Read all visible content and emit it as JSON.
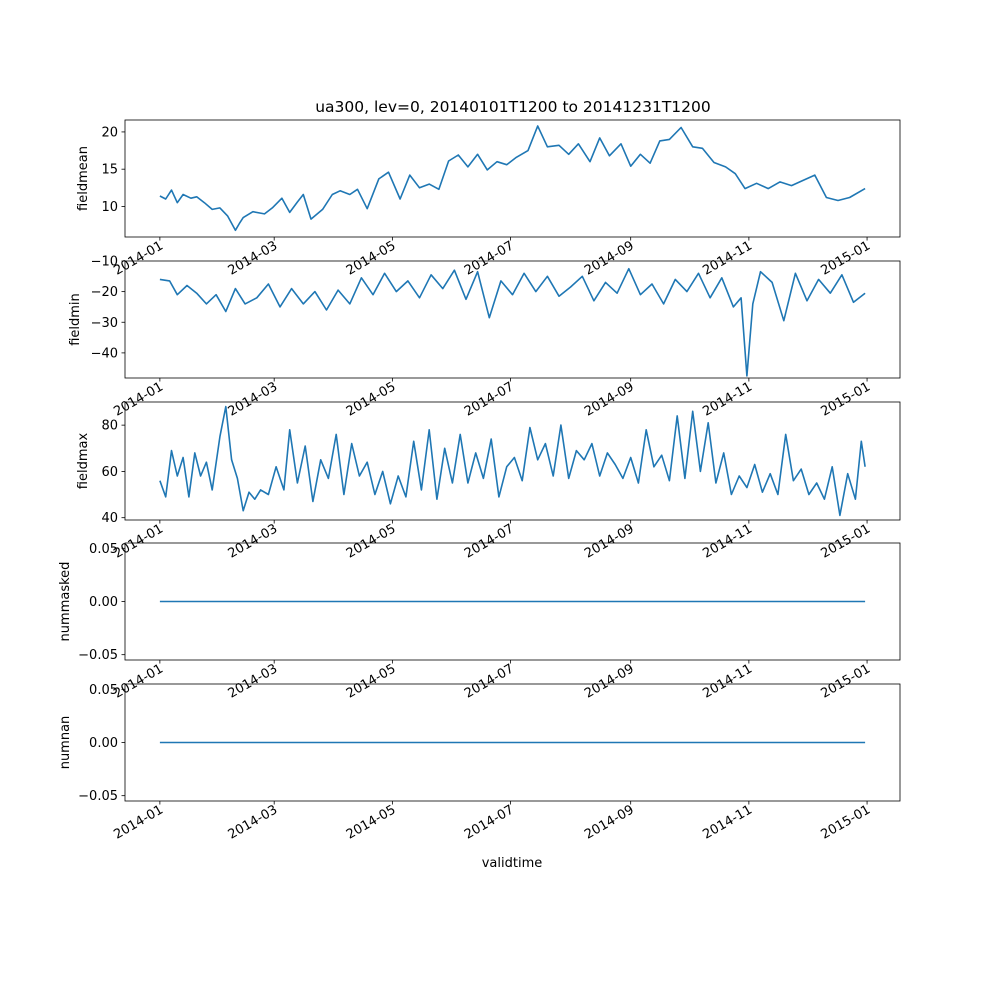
{
  "figure": {
    "title": "ua300, lev=0, 20140101T1200 to 20141231T1200",
    "xlabel": "validtime",
    "line_color": "#1f77b4"
  },
  "chart_data": [
    {
      "type": "line",
      "ylabel": "fieldmean",
      "xlim": [
        "2013-12-14",
        "2015-01-18"
      ],
      "ylim": [
        5.9,
        21.6
      ],
      "yticks": [
        10,
        15,
        20
      ],
      "ytick_labels": [
        "10",
        "15",
        "20"
      ],
      "xticks": [
        "2014-01-01",
        "2014-03-01",
        "2014-05-01",
        "2014-07-01",
        "2014-09-01",
        "2014-11-01",
        "2015-01-01"
      ],
      "xtick_labels": [
        "2014-01",
        "2014-03",
        "2014-05",
        "2014-07",
        "2014-09",
        "2014-11",
        "2015-01"
      ],
      "series": [
        {
          "x": [
            "2014-01-01",
            "2014-01-04",
            "2014-01-07",
            "2014-01-10",
            "2014-01-13",
            "2014-01-17",
            "2014-01-20",
            "2014-01-24",
            "2014-01-28",
            "2014-02-01",
            "2014-02-05",
            "2014-02-09",
            "2014-02-11",
            "2014-02-13",
            "2014-02-18",
            "2014-02-24",
            "2014-02-28",
            "2014-03-05",
            "2014-03-09",
            "2014-03-13",
            "2014-03-16",
            "2014-03-20",
            "2014-03-26",
            "2014-03-31",
            "2014-04-04",
            "2014-04-09",
            "2014-04-13",
            "2014-04-18",
            "2014-04-24",
            "2014-04-29",
            "2014-05-05",
            "2014-05-10",
            "2014-05-15",
            "2014-05-20",
            "2014-05-25",
            "2014-05-30",
            "2014-06-04",
            "2014-06-09",
            "2014-06-14",
            "2014-06-19",
            "2014-06-24",
            "2014-06-29",
            "2014-07-04",
            "2014-07-10",
            "2014-07-15",
            "2014-07-20",
            "2014-07-26",
            "2014-07-31",
            "2014-08-05",
            "2014-08-11",
            "2014-08-16",
            "2014-08-21",
            "2014-08-27",
            "2014-09-01",
            "2014-09-06",
            "2014-09-11",
            "2014-09-16",
            "2014-09-21",
            "2014-09-27",
            "2014-10-03",
            "2014-10-08",
            "2014-10-14",
            "2014-10-20",
            "2014-10-25",
            "2014-10-30",
            "2014-11-05",
            "2014-11-11",
            "2014-11-17",
            "2014-11-23",
            "2014-11-29",
            "2014-12-05",
            "2014-12-11",
            "2014-12-17",
            "2014-12-23",
            "2014-12-31"
          ],
          "y": [
            11.4,
            11.0,
            12.2,
            10.5,
            11.6,
            11.1,
            11.3,
            10.5,
            9.6,
            9.8,
            8.7,
            6.8,
            7.7,
            8.5,
            9.3,
            9.0,
            9.8,
            11.1,
            9.2,
            10.6,
            11.6,
            8.3,
            9.6,
            11.6,
            12.1,
            11.6,
            12.3,
            9.7,
            13.7,
            14.6,
            11.0,
            14.2,
            12.5,
            13.0,
            12.3,
            16.1,
            16.9,
            15.3,
            17.0,
            14.9,
            16.0,
            15.6,
            16.6,
            17.5,
            20.8,
            18.0,
            18.2,
            17.0,
            18.4,
            16.0,
            19.2,
            16.8,
            18.4,
            15.4,
            17.0,
            15.8,
            18.8,
            19.0,
            20.6,
            18.0,
            17.8,
            15.9,
            15.3,
            14.4,
            12.4,
            13.1,
            12.4,
            13.3,
            12.8,
            13.5,
            14.2,
            11.2,
            10.8,
            11.2,
            12.4
          ]
        }
      ]
    },
    {
      "type": "line",
      "ylabel": "fieldmin",
      "xlim": [
        "2013-12-14",
        "2015-01-18"
      ],
      "ylim": [
        -48.2,
        -10.0
      ],
      "yticks": [
        -40,
        -30,
        -20,
        -10
      ],
      "ytick_labels": [
        "−40",
        "−30",
        "−20",
        "−10"
      ],
      "xticks": [
        "2014-01-01",
        "2014-03-01",
        "2014-05-01",
        "2014-07-01",
        "2014-09-01",
        "2014-11-01",
        "2015-01-01"
      ],
      "xtick_labels": [
        "2014-01",
        "2014-03",
        "2014-05",
        "2014-07",
        "2014-09",
        "2014-11",
        "2015-01"
      ],
      "series": [
        {
          "x": [
            "2014-01-01",
            "2014-01-06",
            "2014-01-10",
            "2014-01-15",
            "2014-01-20",
            "2014-01-25",
            "2014-01-30",
            "2014-02-04",
            "2014-02-09",
            "2014-02-14",
            "2014-02-20",
            "2014-02-26",
            "2014-03-04",
            "2014-03-10",
            "2014-03-16",
            "2014-03-22",
            "2014-03-28",
            "2014-04-03",
            "2014-04-09",
            "2014-04-15",
            "2014-04-21",
            "2014-04-27",
            "2014-05-03",
            "2014-05-09",
            "2014-05-15",
            "2014-05-21",
            "2014-05-27",
            "2014-06-02",
            "2014-06-08",
            "2014-06-14",
            "2014-06-20",
            "2014-06-26",
            "2014-07-02",
            "2014-07-08",
            "2014-07-14",
            "2014-07-20",
            "2014-07-26",
            "2014-08-01",
            "2014-08-07",
            "2014-08-13",
            "2014-08-19",
            "2014-08-25",
            "2014-08-31",
            "2014-09-06",
            "2014-09-12",
            "2014-09-18",
            "2014-09-24",
            "2014-09-30",
            "2014-10-06",
            "2014-10-12",
            "2014-10-18",
            "2014-10-24",
            "2014-10-28",
            "2014-10-31",
            "2014-11-03",
            "2014-11-07",
            "2014-11-13",
            "2014-11-19",
            "2014-11-25",
            "2014-12-01",
            "2014-12-07",
            "2014-12-13",
            "2014-12-19",
            "2014-12-25",
            "2014-12-31"
          ],
          "y": [
            -16.0,
            -16.5,
            -21.0,
            -18.0,
            -20.5,
            -24.0,
            -21.0,
            -26.5,
            -19.0,
            -24.0,
            -22.0,
            -17.5,
            -25.0,
            -19.0,
            -24.0,
            -20.0,
            -26.0,
            -19.5,
            -24.0,
            -15.5,
            -21.0,
            -14.0,
            -20.0,
            -16.5,
            -22.0,
            -14.5,
            -19.0,
            -13.0,
            -22.5,
            -13.5,
            -28.5,
            -16.5,
            -21.0,
            -14.0,
            -20.0,
            -15.0,
            -21.5,
            -18.5,
            -15.0,
            -23.0,
            -17.0,
            -20.5,
            -12.5,
            -21.0,
            -17.5,
            -24.0,
            -16.0,
            -20.0,
            -14.0,
            -22.0,
            -15.5,
            -25.0,
            -22.0,
            -47.5,
            -24.0,
            -13.5,
            -17.0,
            -29.5,
            -14.0,
            -23.0,
            -16.0,
            -20.5,
            -14.5,
            -23.5,
            -20.5
          ]
        }
      ]
    },
    {
      "type": "line",
      "ylabel": "fieldmax",
      "xlim": [
        "2013-12-14",
        "2015-01-18"
      ],
      "ylim": [
        39.0,
        90.0
      ],
      "yticks": [
        40,
        60,
        80
      ],
      "ytick_labels": [
        "40",
        "60",
        "80"
      ],
      "xticks": [
        "2014-01-01",
        "2014-03-01",
        "2014-05-01",
        "2014-07-01",
        "2014-09-01",
        "2014-11-01",
        "2015-01-01"
      ],
      "xtick_labels": [
        "2014-01",
        "2014-03",
        "2014-05",
        "2014-07",
        "2014-09",
        "2014-11",
        "2015-01"
      ],
      "series": [
        {
          "x": [
            "2014-01-01",
            "2014-01-04",
            "2014-01-07",
            "2014-01-10",
            "2014-01-13",
            "2014-01-16",
            "2014-01-19",
            "2014-01-22",
            "2014-01-25",
            "2014-01-28",
            "2014-02-01",
            "2014-02-04",
            "2014-02-07",
            "2014-02-10",
            "2014-02-13",
            "2014-02-16",
            "2014-02-19",
            "2014-02-22",
            "2014-02-26",
            "2014-03-02",
            "2014-03-06",
            "2014-03-09",
            "2014-03-13",
            "2014-03-17",
            "2014-03-21",
            "2014-03-25",
            "2014-03-29",
            "2014-04-02",
            "2014-04-06",
            "2014-04-10",
            "2014-04-14",
            "2014-04-18",
            "2014-04-22",
            "2014-04-26",
            "2014-04-30",
            "2014-05-04",
            "2014-05-08",
            "2014-05-12",
            "2014-05-16",
            "2014-05-20",
            "2014-05-24",
            "2014-05-28",
            "2014-06-01",
            "2014-06-05",
            "2014-06-09",
            "2014-06-13",
            "2014-06-17",
            "2014-06-21",
            "2014-06-25",
            "2014-06-29",
            "2014-07-03",
            "2014-07-07",
            "2014-07-11",
            "2014-07-15",
            "2014-07-19",
            "2014-07-23",
            "2014-07-27",
            "2014-07-31",
            "2014-08-04",
            "2014-08-08",
            "2014-08-12",
            "2014-08-16",
            "2014-08-20",
            "2014-08-24",
            "2014-08-28",
            "2014-09-01",
            "2014-09-05",
            "2014-09-09",
            "2014-09-13",
            "2014-09-17",
            "2014-09-21",
            "2014-09-25",
            "2014-09-29",
            "2014-10-03",
            "2014-10-07",
            "2014-10-11",
            "2014-10-15",
            "2014-10-19",
            "2014-10-23",
            "2014-10-27",
            "2014-10-31",
            "2014-11-04",
            "2014-11-08",
            "2014-11-12",
            "2014-11-16",
            "2014-11-20",
            "2014-11-24",
            "2014-11-28",
            "2014-12-02",
            "2014-12-06",
            "2014-12-10",
            "2014-12-14",
            "2014-12-18",
            "2014-12-22",
            "2014-12-26",
            "2014-12-29",
            "2014-12-31"
          ],
          "y": [
            56,
            49,
            69,
            58,
            66,
            49,
            68,
            58,
            64,
            52,
            75,
            88,
            65,
            57,
            43,
            51,
            48,
            52,
            50,
            62,
            52,
            78,
            55,
            71,
            47,
            65,
            57,
            76,
            50,
            72,
            58,
            64,
            50,
            60,
            46,
            58,
            49,
            73,
            52,
            78,
            48,
            70,
            55,
            76,
            55,
            68,
            57,
            74,
            49,
            62,
            66,
            56,
            79,
            65,
            72,
            58,
            80,
            57,
            69,
            65,
            72,
            58,
            68,
            63,
            57,
            66,
            55,
            78,
            62,
            67,
            56,
            84,
            57,
            86,
            60,
            81,
            55,
            68,
            50,
            58,
            53,
            63,
            51,
            59,
            50,
            76,
            56,
            61,
            50,
            55,
            48,
            62,
            41,
            59,
            48,
            73,
            62
          ]
        }
      ]
    },
    {
      "type": "line",
      "ylabel": "nummasked",
      "xlim": [
        "2013-12-14",
        "2015-01-18"
      ],
      "ylim": [
        -0.055,
        0.055
      ],
      "yticks": [
        -0.05,
        0.0,
        0.05
      ],
      "ytick_labels": [
        "−0.05",
        "0.00",
        "0.05"
      ],
      "xticks": [
        "2014-01-01",
        "2014-03-01",
        "2014-05-01",
        "2014-07-01",
        "2014-09-01",
        "2014-11-01",
        "2015-01-01"
      ],
      "xtick_labels": [
        "2014-01",
        "2014-03",
        "2014-05",
        "2014-07",
        "2014-09",
        "2014-11",
        "2015-01"
      ],
      "series": [
        {
          "x": [
            "2014-01-01",
            "2014-12-31"
          ],
          "y": [
            0.0,
            0.0
          ]
        }
      ]
    },
    {
      "type": "line",
      "ylabel": "numnan",
      "xlim": [
        "2013-12-14",
        "2015-01-18"
      ],
      "ylim": [
        -0.055,
        0.055
      ],
      "yticks": [
        -0.05,
        0.0,
        0.05
      ],
      "ytick_labels": [
        "−0.05",
        "0.00",
        "0.05"
      ],
      "xticks": [
        "2014-01-01",
        "2014-03-01",
        "2014-05-01",
        "2014-07-01",
        "2014-09-01",
        "2014-11-01",
        "2015-01-01"
      ],
      "xtick_labels": [
        "2014-01",
        "2014-03",
        "2014-05",
        "2014-07",
        "2014-09",
        "2014-11",
        "2015-01"
      ],
      "series": [
        {
          "x": [
            "2014-01-01",
            "2014-12-31"
          ],
          "y": [
            0.0,
            0.0
          ]
        }
      ]
    }
  ]
}
